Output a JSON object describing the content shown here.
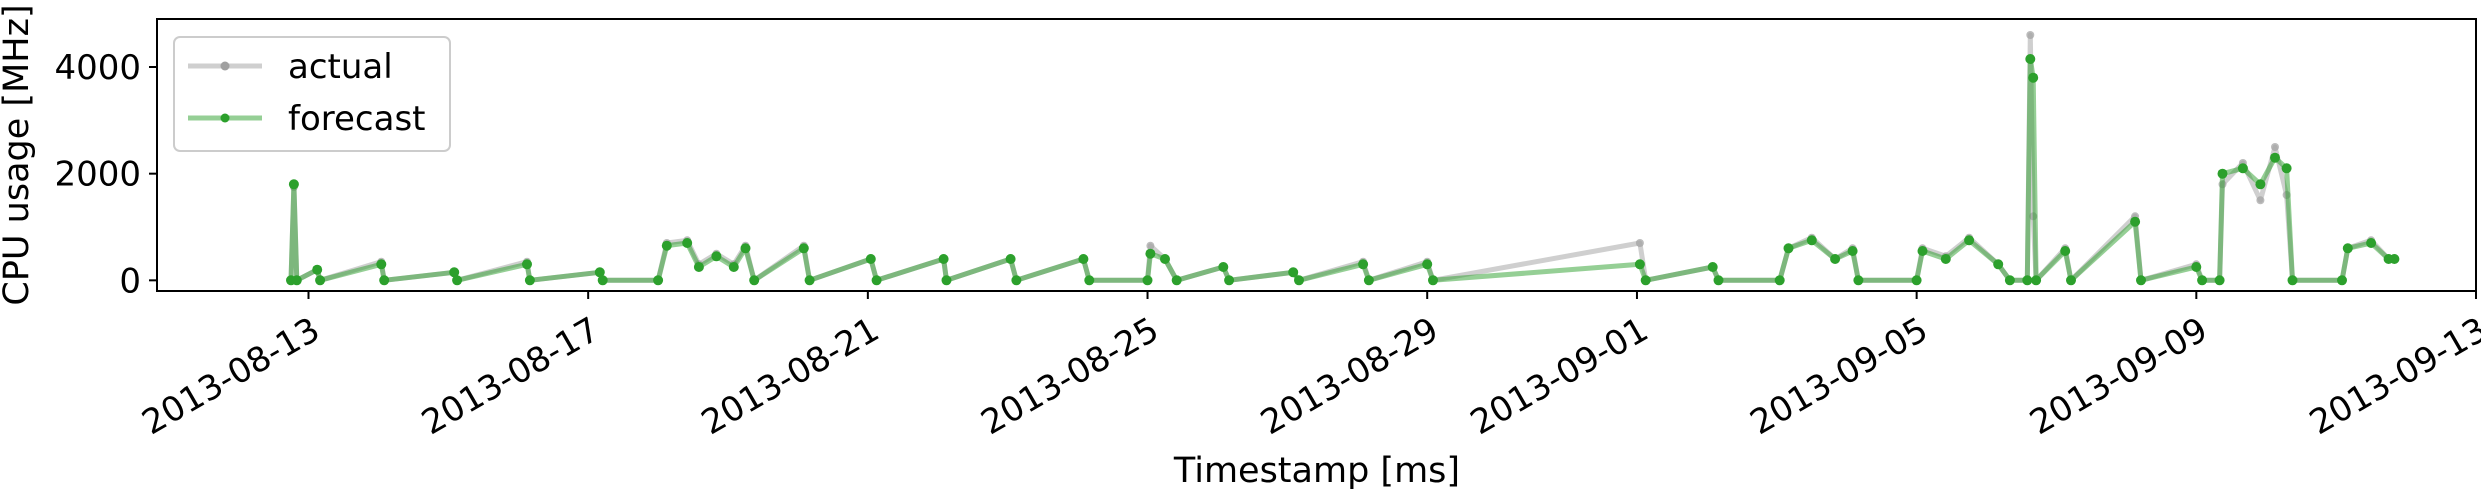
{
  "chart_data": {
    "type": "line",
    "title": "",
    "xlabel": "Timestamp [ms]",
    "ylabel": "CPU usage [MHz]",
    "xlim": [
      "2013-08-10T20:00",
      "2013-09-13T00:00"
    ],
    "ylim": [
      -200,
      4900
    ],
    "x_tick_labels": [
      "2013-08-13",
      "2013-08-17",
      "2013-08-21",
      "2013-08-25",
      "2013-08-29",
      "2013-09-01",
      "2013-09-05",
      "2013-09-09",
      "2013-09-13"
    ],
    "y_tick_labels": [
      "0",
      "2000",
      "4000"
    ],
    "y_ticks": [
      0,
      2000,
      4000
    ],
    "grid": false,
    "legend_position": "top-left",
    "colors": {
      "actual": "#a0a0a0",
      "forecast": "#2ca02c"
    },
    "series": [
      {
        "name": "actual",
        "points": [
          [
            "2013-08-12T18:00",
            0
          ],
          [
            "2013-08-12T19:00",
            1750
          ],
          [
            "2013-08-12T20:00",
            0
          ],
          [
            "2013-08-13T03:00",
            200
          ],
          [
            "2013-08-13T04:00",
            0
          ],
          [
            "2013-08-14T01:00",
            350
          ],
          [
            "2013-08-14T02:00",
            0
          ],
          [
            "2013-08-15T02:00",
            150
          ],
          [
            "2013-08-15T03:00",
            0
          ],
          [
            "2013-08-16T03:00",
            350
          ],
          [
            "2013-08-16T04:00",
            0
          ],
          [
            "2013-08-17T04:00",
            150
          ],
          [
            "2013-08-17T05:00",
            0
          ],
          [
            "2013-08-18T00:00",
            0
          ],
          [
            "2013-08-18T03:00",
            700
          ],
          [
            "2013-08-18T10:00",
            750
          ],
          [
            "2013-08-18T14:00",
            300
          ],
          [
            "2013-08-18T20:00",
            500
          ],
          [
            "2013-08-19T02:00",
            300
          ],
          [
            "2013-08-19T06:00",
            650
          ],
          [
            "2013-08-19T09:00",
            0
          ],
          [
            "2013-08-20T02:00",
            650
          ],
          [
            "2013-08-20T04:00",
            0
          ],
          [
            "2013-08-21T01:00",
            400
          ],
          [
            "2013-08-21T03:00",
            0
          ],
          [
            "2013-08-22T02:00",
            400
          ],
          [
            "2013-08-22T03:00",
            0
          ],
          [
            "2013-08-23T01:00",
            400
          ],
          [
            "2013-08-23T03:00",
            0
          ],
          [
            "2013-08-24T02:00",
            400
          ],
          [
            "2013-08-24T04:00",
            0
          ],
          [
            "2013-08-25T00:00",
            0
          ],
          [
            "2013-08-25T01:00",
            650
          ],
          [
            "2013-08-25T06:00",
            400
          ],
          [
            "2013-08-25T10:00",
            0
          ],
          [
            "2013-08-26T02:00",
            250
          ],
          [
            "2013-08-26T04:00",
            0
          ],
          [
            "2013-08-27T02:00",
            150
          ],
          [
            "2013-08-27T04:00",
            0
          ],
          [
            "2013-08-28T02:00",
            350
          ],
          [
            "2013-08-28T04:00",
            0
          ],
          [
            "2013-08-29T00:00",
            350
          ],
          [
            "2013-08-29T02:00",
            0
          ],
          [
            "2013-09-01T01:00",
            700
          ],
          [
            "2013-09-01T03:00",
            0
          ],
          [
            "2013-09-02T02:00",
            250
          ],
          [
            "2013-09-02T04:00",
            0
          ],
          [
            "2013-09-03T01:00",
            0
          ],
          [
            "2013-09-03T04:00",
            600
          ],
          [
            "2013-09-03T12:00",
            800
          ],
          [
            "2013-09-03T20:00",
            400
          ],
          [
            "2013-09-04T02:00",
            600
          ],
          [
            "2013-09-04T04:00",
            0
          ],
          [
            "2013-09-05T00:00",
            0
          ],
          [
            "2013-09-05T02:00",
            600
          ],
          [
            "2013-09-05T10:00",
            450
          ],
          [
            "2013-09-05T18:00",
            800
          ],
          [
            "2013-09-06T04:00",
            300
          ],
          [
            "2013-09-06T08:00",
            0
          ],
          [
            "2013-09-06T14:00",
            0
          ],
          [
            "2013-09-06T15:00",
            4600
          ],
          [
            "2013-09-06T16:00",
            1200
          ],
          [
            "2013-09-06T17:00",
            0
          ],
          [
            "2013-09-07T03:00",
            600
          ],
          [
            "2013-09-07T05:00",
            0
          ],
          [
            "2013-09-08T03:00",
            1200
          ],
          [
            "2013-09-08T05:00",
            0
          ],
          [
            "2013-09-09T00:00",
            300
          ],
          [
            "2013-09-09T02:00",
            0
          ],
          [
            "2013-09-09T08:00",
            0
          ],
          [
            "2013-09-09T09:00",
            1800
          ],
          [
            "2013-09-09T16:00",
            2200
          ],
          [
            "2013-09-09T22:00",
            1500
          ],
          [
            "2013-09-10T03:00",
            2500
          ],
          [
            "2013-09-10T07:00",
            1600
          ],
          [
            "2013-09-10T09:00",
            0
          ],
          [
            "2013-09-11T02:00",
            0
          ],
          [
            "2013-09-11T04:00",
            600
          ],
          [
            "2013-09-11T12:00",
            750
          ],
          [
            "2013-09-11T18:00",
            400
          ],
          [
            "2013-09-11T20:00",
            400
          ]
        ]
      },
      {
        "name": "forecast",
        "points": [
          [
            "2013-08-12T18:00",
            0
          ],
          [
            "2013-08-12T19:00",
            1800
          ],
          [
            "2013-08-12T20:00",
            0
          ],
          [
            "2013-08-13T03:00",
            200
          ],
          [
            "2013-08-13T04:00",
            0
          ],
          [
            "2013-08-14T01:00",
            300
          ],
          [
            "2013-08-14T02:00",
            0
          ],
          [
            "2013-08-15T02:00",
            150
          ],
          [
            "2013-08-15T03:00",
            0
          ],
          [
            "2013-08-16T03:00",
            300
          ],
          [
            "2013-08-16T04:00",
            0
          ],
          [
            "2013-08-17T04:00",
            150
          ],
          [
            "2013-08-17T05:00",
            0
          ],
          [
            "2013-08-18T00:00",
            0
          ],
          [
            "2013-08-18T03:00",
            650
          ],
          [
            "2013-08-18T10:00",
            700
          ],
          [
            "2013-08-18T14:00",
            250
          ],
          [
            "2013-08-18T20:00",
            450
          ],
          [
            "2013-08-19T02:00",
            250
          ],
          [
            "2013-08-19T06:00",
            600
          ],
          [
            "2013-08-19T09:00",
            0
          ],
          [
            "2013-08-20T02:00",
            600
          ],
          [
            "2013-08-20T04:00",
            0
          ],
          [
            "2013-08-21T01:00",
            400
          ],
          [
            "2013-08-21T03:00",
            0
          ],
          [
            "2013-08-22T02:00",
            400
          ],
          [
            "2013-08-22T03:00",
            0
          ],
          [
            "2013-08-23T01:00",
            400
          ],
          [
            "2013-08-23T03:00",
            0
          ],
          [
            "2013-08-24T02:00",
            400
          ],
          [
            "2013-08-24T04:00",
            0
          ],
          [
            "2013-08-25T00:00",
            0
          ],
          [
            "2013-08-25T01:00",
            500
          ],
          [
            "2013-08-25T06:00",
            400
          ],
          [
            "2013-08-25T10:00",
            0
          ],
          [
            "2013-08-26T02:00",
            250
          ],
          [
            "2013-08-26T04:00",
            0
          ],
          [
            "2013-08-27T02:00",
            150
          ],
          [
            "2013-08-27T04:00",
            0
          ],
          [
            "2013-08-28T02:00",
            300
          ],
          [
            "2013-08-28T04:00",
            0
          ],
          [
            "2013-08-29T00:00",
            300
          ],
          [
            "2013-08-29T02:00",
            0
          ],
          [
            "2013-09-01T01:00",
            300
          ],
          [
            "2013-09-01T03:00",
            0
          ],
          [
            "2013-09-02T02:00",
            250
          ],
          [
            "2013-09-02T04:00",
            0
          ],
          [
            "2013-09-03T01:00",
            0
          ],
          [
            "2013-09-03T04:00",
            600
          ],
          [
            "2013-09-03T12:00",
            750
          ],
          [
            "2013-09-03T20:00",
            400
          ],
          [
            "2013-09-04T02:00",
            550
          ],
          [
            "2013-09-04T04:00",
            0
          ],
          [
            "2013-09-05T00:00",
            0
          ],
          [
            "2013-09-05T02:00",
            550
          ],
          [
            "2013-09-05T10:00",
            400
          ],
          [
            "2013-09-05T18:00",
            750
          ],
          [
            "2013-09-06T04:00",
            300
          ],
          [
            "2013-09-06T08:00",
            0
          ],
          [
            "2013-09-06T14:00",
            0
          ],
          [
            "2013-09-06T15:00",
            4150
          ],
          [
            "2013-09-06T16:00",
            3800
          ],
          [
            "2013-09-06T17:00",
            0
          ],
          [
            "2013-09-07T03:00",
            550
          ],
          [
            "2013-09-07T05:00",
            0
          ],
          [
            "2013-09-08T03:00",
            1100
          ],
          [
            "2013-09-08T05:00",
            0
          ],
          [
            "2013-09-09T00:00",
            250
          ],
          [
            "2013-09-09T02:00",
            0
          ],
          [
            "2013-09-09T08:00",
            0
          ],
          [
            "2013-09-09T09:00",
            2000
          ],
          [
            "2013-09-09T16:00",
            2100
          ],
          [
            "2013-09-09T22:00",
            1800
          ],
          [
            "2013-09-10T03:00",
            2300
          ],
          [
            "2013-09-10T07:00",
            2100
          ],
          [
            "2013-09-10T09:00",
            0
          ],
          [
            "2013-09-11T02:00",
            0
          ],
          [
            "2013-09-11T04:00",
            600
          ],
          [
            "2013-09-11T12:00",
            700
          ],
          [
            "2013-09-11T18:00",
            400
          ],
          [
            "2013-09-11T20:00",
            400
          ]
        ]
      }
    ]
  }
}
